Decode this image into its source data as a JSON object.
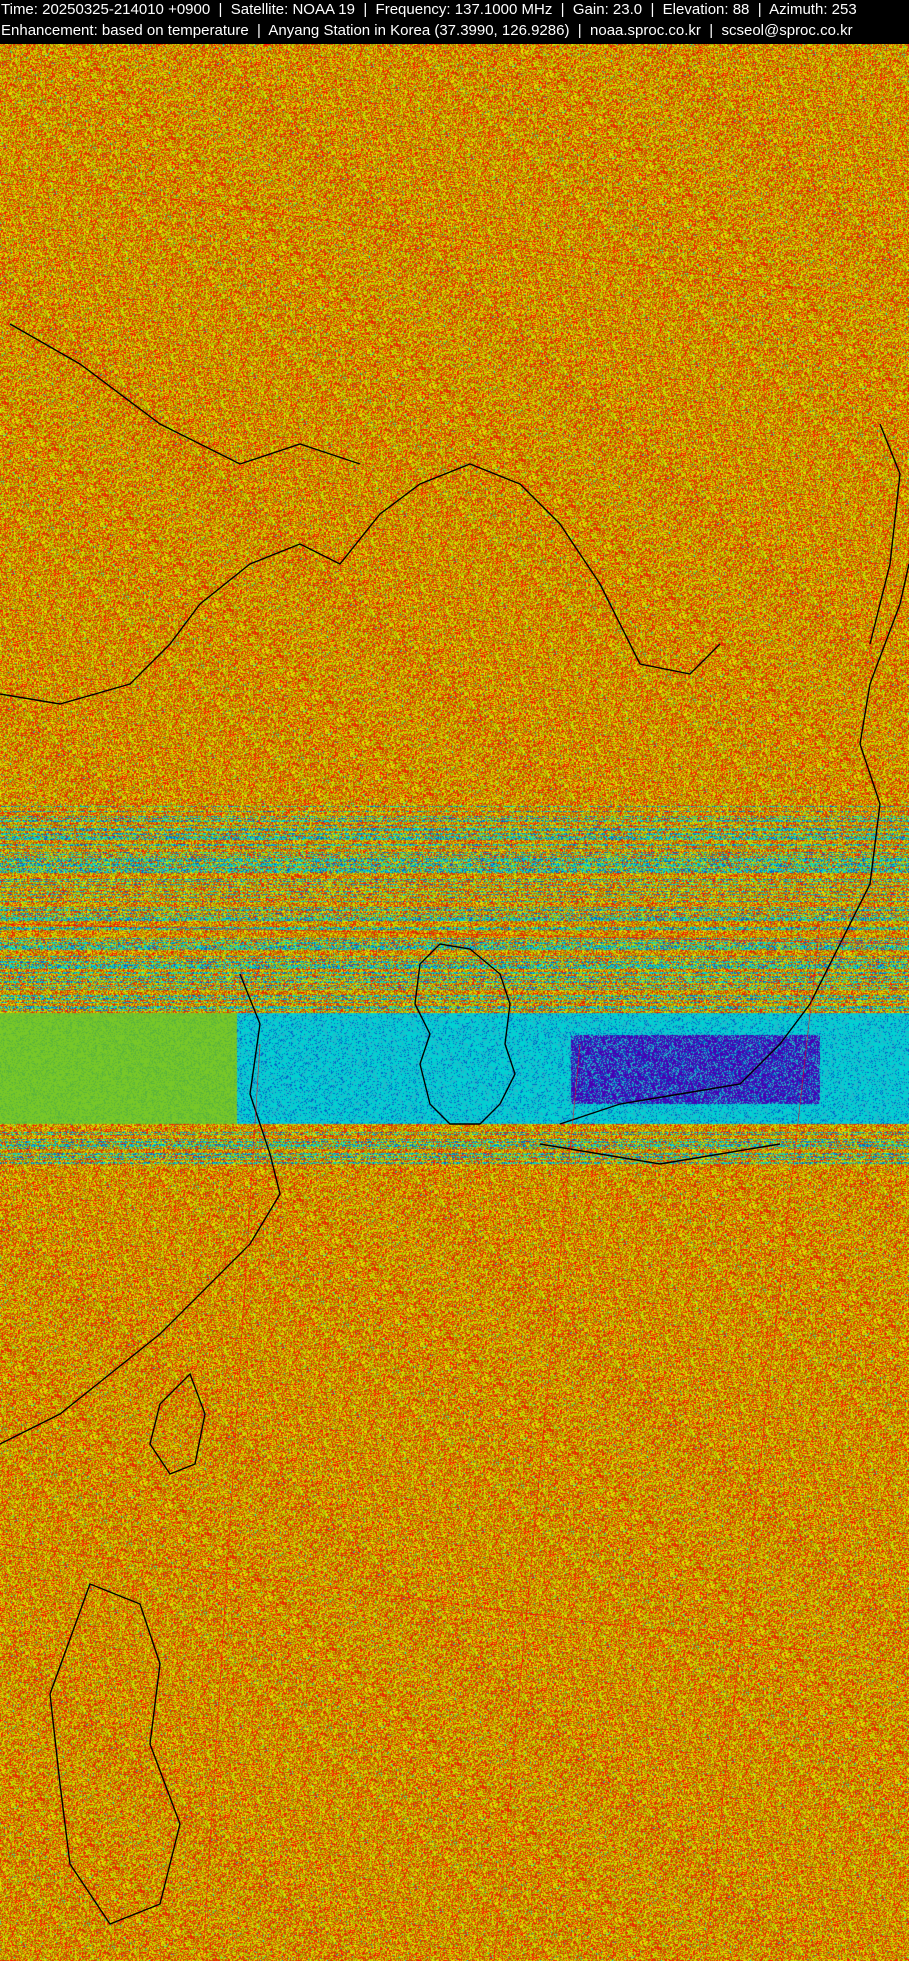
{
  "header": {
    "line1": "Time: 20250325-214010 +0900  |  Satellite: NOAA 19  |  Frequency: 137.1000 MHz  |  Gain: 23.0  |  Elevation: 88  |  Azimuth: 253",
    "line2": "Enhancement: based on temperature  |  Anyang Station in Korea (37.3990, 126.9286)  |  noaa.sproc.co.kr  |  scseol@sproc.co.kr"
  },
  "image": {
    "type": "NOAA APT satellite image, temperature enhanced",
    "palette": {
      "noise": [
        "#c83c00",
        "#ff1400",
        "#d4c800",
        "#e6e600",
        "#a0c800",
        "#b47800"
      ],
      "cold_cloud": [
        "#00d2d2",
        "#0064c8",
        "#4600b4",
        "#28b4c8"
      ],
      "coastline": "#000000",
      "grid": "#ff0000"
    }
  }
}
